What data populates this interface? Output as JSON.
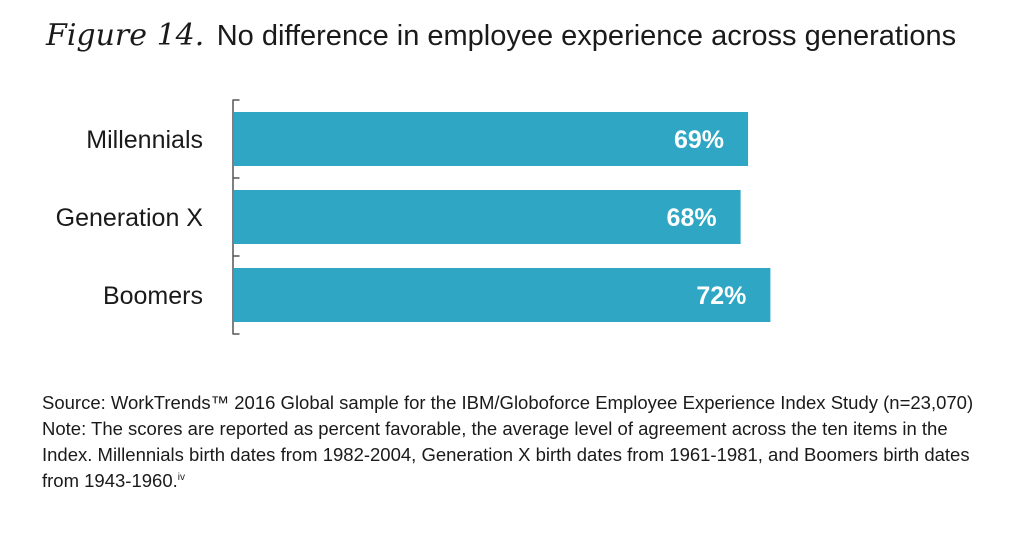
{
  "figure": {
    "label": "Figure 14.",
    "title": "No difference in employee experience across generations"
  },
  "chart_data": {
    "type": "bar",
    "orientation": "horizontal",
    "categories": [
      "Millennials",
      "Generation X",
      "Boomers"
    ],
    "values": [
      69,
      68,
      72
    ],
    "value_labels": [
      "69%",
      "68%",
      "72%"
    ],
    "unit": "%",
    "bar_color": "#2ea6c4",
    "label_color": "#ffffff",
    "xlim": [
      0,
      100
    ],
    "grid": false,
    "legend": "none"
  },
  "notes": {
    "source": "Source: WorkTrends™ 2016 Global sample for the IBM/Globoforce Employee Experience Index Study (n=23,070)",
    "note": "Note: The scores are reported as percent favorable, the average level of agreement across the ten items in the Index. Millennials birth dates from 1982-2004, Generation X birth dates from 1961-1981, and Boomers birth dates from 1943-1960.",
    "note_footnote": "iv"
  }
}
